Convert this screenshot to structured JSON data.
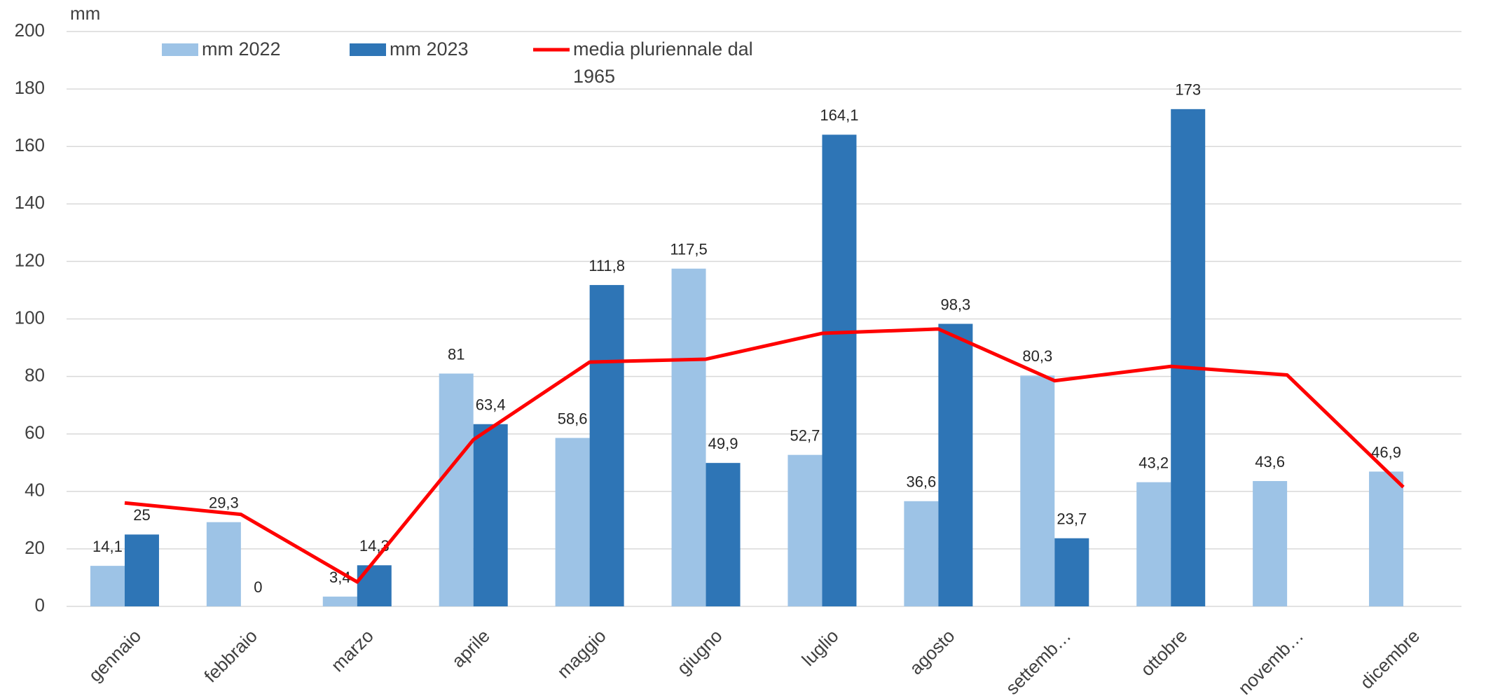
{
  "chart_data": {
    "type": "bar",
    "y_label": "mm",
    "categories": [
      "gennaio",
      "febbraio",
      "marzo",
      "aprile",
      "maggio",
      "giugno",
      "luglio",
      "agosto",
      "settemb…",
      "ottobre",
      "novemb…",
      "dicembre"
    ],
    "series": [
      {
        "name": "mm 2022",
        "type": "bar",
        "color": "#9dc3e6",
        "values": [
          14.1,
          29.3,
          3.4,
          81,
          58.6,
          117.5,
          52.7,
          36.6,
          80.3,
          43.2,
          43.6,
          46.9
        ],
        "value_labels": [
          "14,1",
          "29,3",
          "3,4",
          "81",
          "58,6",
          "117,5",
          "52,7",
          "36,6",
          "80,3",
          "43,2",
          "43,6",
          "46,9"
        ]
      },
      {
        "name": "mm 2023",
        "type": "bar",
        "color": "#2e75b6",
        "values": [
          25,
          0,
          14.3,
          63.4,
          111.8,
          49.9,
          164.1,
          98.3,
          23.7,
          173,
          null,
          null
        ],
        "value_labels": [
          "25",
          "0",
          "14,3",
          "63,4",
          "111,8",
          "49,9",
          "164,1",
          "98,3",
          "23,7",
          "173",
          null,
          null
        ]
      },
      {
        "name": "media pluriennale dal 1965",
        "type": "line",
        "color": "#ff0000",
        "values": [
          36,
          32,
          8.5,
          58,
          85,
          86,
          95,
          96.5,
          78.5,
          83.5,
          80.5,
          41.5
        ]
      }
    ],
    "ylim": [
      0,
      200
    ],
    "yticks": [
      0,
      20,
      40,
      60,
      80,
      100,
      120,
      140,
      160,
      180,
      200
    ],
    "grid": true,
    "legend": "top"
  }
}
